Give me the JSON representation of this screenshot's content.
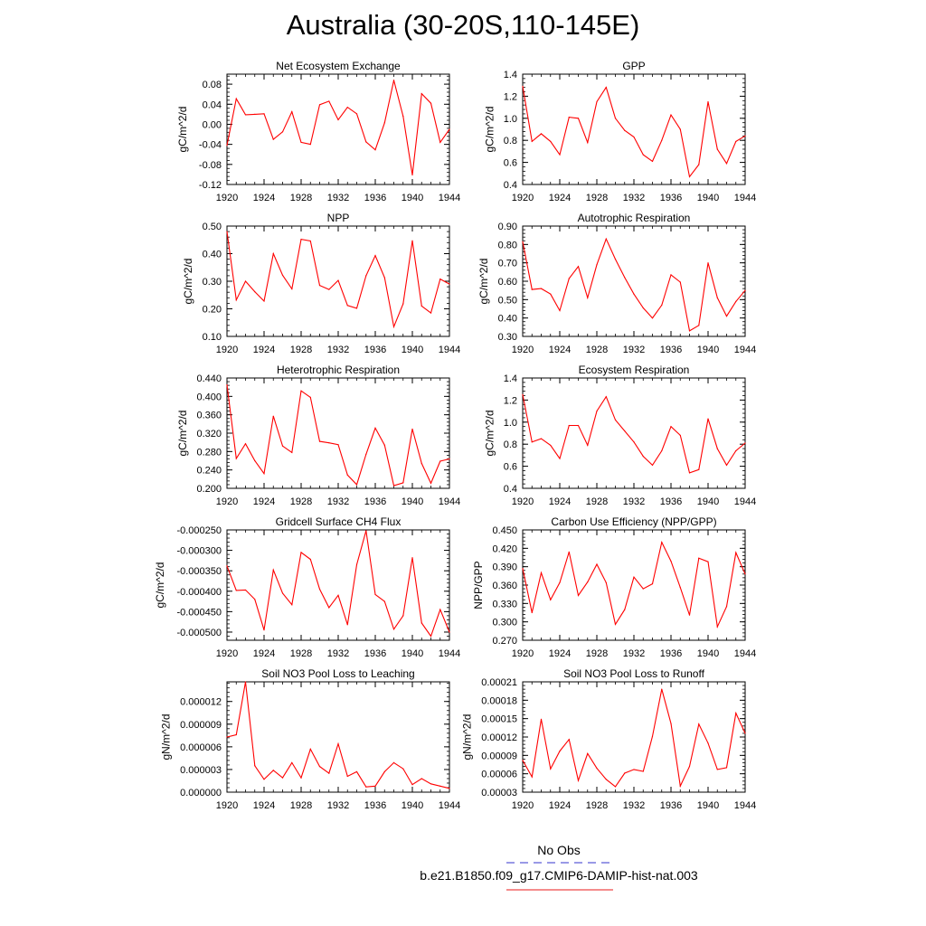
{
  "title": "Australia (30-20S,110-145E)",
  "legend": {
    "items": [
      {
        "label": "No Obs",
        "color": "#3333cc",
        "style": "dashed"
      },
      {
        "label": "b.e21.B1850.f09_g17.CMIP6-DAMIP-hist-nat.003",
        "color": "#e81a1a",
        "style": "solid"
      }
    ]
  },
  "line_color": "#ff0000",
  "chart_data": [
    {
      "type": "line",
      "title": "Net Ecosystem Exchange",
      "ylabel": "gC/m^2/d",
      "xlim": [
        1920,
        1944
      ],
      "ylim": [
        -0.12,
        0.1
      ],
      "xticks": [
        1920,
        1924,
        1928,
        1932,
        1936,
        1940,
        1944
      ],
      "yticks": [
        -0.12,
        -0.08,
        -0.04,
        0.0,
        0.04,
        0.08
      ],
      "ytick_labels": [
        "-0.12",
        "-0.08",
        "-0.04",
        "0.00",
        "0.04",
        "0.08"
      ],
      "x": [
        1920,
        1921,
        1922,
        1923,
        1924,
        1925,
        1926,
        1927,
        1928,
        1929,
        1930,
        1931,
        1932,
        1933,
        1934,
        1935,
        1936,
        1937,
        1938,
        1939,
        1940,
        1941,
        1942,
        1943,
        1944
      ],
      "series": [
        {
          "values": [
            -0.042,
            0.051,
            0.019,
            0.02,
            0.021,
            -0.03,
            -0.015,
            0.025,
            -0.036,
            -0.04,
            0.039,
            0.046,
            0.009,
            0.034,
            0.021,
            -0.035,
            -0.051,
            0.003,
            0.088,
            0.016,
            -0.101,
            0.061,
            0.042,
            -0.036,
            -0.01
          ]
        }
      ]
    },
    {
      "type": "line",
      "title": "GPP",
      "ylabel": "gC/m^2/d",
      "xlim": [
        1920,
        1944
      ],
      "ylim": [
        0.4,
        1.4
      ],
      "xticks": [
        1920,
        1924,
        1928,
        1932,
        1936,
        1940,
        1944
      ],
      "yticks": [
        0.4,
        0.6,
        0.8,
        1.0,
        1.2,
        1.4
      ],
      "ytick_labels": [
        "0.4",
        "0.6",
        "0.8",
        "1.0",
        "1.2",
        "1.4"
      ],
      "x": [
        1920,
        1921,
        1922,
        1923,
        1924,
        1925,
        1926,
        1927,
        1928,
        1929,
        1930,
        1931,
        1932,
        1933,
        1934,
        1935,
        1936,
        1937,
        1938,
        1939,
        1940,
        1941,
        1942,
        1943,
        1944
      ],
      "series": [
        {
          "values": [
            1.29,
            0.79,
            0.86,
            0.79,
            0.67,
            1.01,
            1.0,
            0.78,
            1.15,
            1.28,
            1.0,
            0.89,
            0.83,
            0.67,
            0.61,
            0.8,
            1.03,
            0.9,
            0.47,
            0.58,
            1.15,
            0.72,
            0.59,
            0.79,
            0.84
          ]
        }
      ]
    },
    {
      "type": "line",
      "title": "NPP",
      "ylabel": "gC/m^2/d",
      "xlim": [
        1920,
        1944
      ],
      "ylim": [
        0.1,
        0.5
      ],
      "xticks": [
        1920,
        1924,
        1928,
        1932,
        1936,
        1940,
        1944
      ],
      "yticks": [
        0.1,
        0.2,
        0.3,
        0.4,
        0.5
      ],
      "ytick_labels": [
        "0.10",
        "0.20",
        "0.30",
        "0.40",
        "0.50"
      ],
      "x": [
        1920,
        1921,
        1922,
        1923,
        1924,
        1925,
        1926,
        1927,
        1928,
        1929,
        1930,
        1931,
        1932,
        1933,
        1934,
        1935,
        1936,
        1937,
        1938,
        1939,
        1940,
        1941,
        1942,
        1943,
        1944
      ],
      "series": [
        {
          "values": [
            0.48,
            0.232,
            0.3,
            0.262,
            0.228,
            0.4,
            0.322,
            0.272,
            0.452,
            0.446,
            0.285,
            0.27,
            0.303,
            0.212,
            0.202,
            0.32,
            0.393,
            0.313,
            0.135,
            0.218,
            0.447,
            0.21,
            0.185,
            0.308,
            0.29
          ]
        }
      ]
    },
    {
      "type": "line",
      "title": "Autotrophic Respiration",
      "ylabel": "gC/m^2/d",
      "xlim": [
        1920,
        1944
      ],
      "ylim": [
        0.3,
        0.9
      ],
      "xticks": [
        1920,
        1924,
        1928,
        1932,
        1936,
        1940,
        1944
      ],
      "yticks": [
        0.3,
        0.4,
        0.5,
        0.6,
        0.7,
        0.8,
        0.9
      ],
      "ytick_labels": [
        "0.30",
        "0.40",
        "0.50",
        "0.60",
        "0.70",
        "0.80",
        "0.90"
      ],
      "x": [
        1920,
        1921,
        1922,
        1923,
        1924,
        1925,
        1926,
        1927,
        1928,
        1929,
        1930,
        1931,
        1932,
        1933,
        1934,
        1935,
        1936,
        1937,
        1938,
        1939,
        1940,
        1941,
        1942,
        1943,
        1944
      ],
      "series": [
        {
          "values": [
            0.815,
            0.555,
            0.56,
            0.53,
            0.44,
            0.615,
            0.68,
            0.51,
            0.69,
            0.83,
            0.72,
            0.62,
            0.53,
            0.455,
            0.4,
            0.47,
            0.635,
            0.595,
            0.33,
            0.36,
            0.7,
            0.51,
            0.41,
            0.49,
            0.55
          ]
        }
      ]
    },
    {
      "type": "line",
      "title": "Heterotrophic Respiration",
      "ylabel": "gC/m^2/d",
      "xlim": [
        1920,
        1944
      ],
      "ylim": [
        0.2,
        0.44
      ],
      "xticks": [
        1920,
        1924,
        1928,
        1932,
        1936,
        1940,
        1944
      ],
      "yticks": [
        0.2,
        0.24,
        0.28,
        0.32,
        0.36,
        0.4,
        0.44
      ],
      "ytick_labels": [
        "0.200",
        "0.240",
        "0.280",
        "0.320",
        "0.360",
        "0.400",
        "0.440"
      ],
      "x": [
        1920,
        1921,
        1922,
        1923,
        1924,
        1925,
        1926,
        1927,
        1928,
        1929,
        1930,
        1931,
        1932,
        1933,
        1934,
        1935,
        1936,
        1937,
        1938,
        1939,
        1940,
        1941,
        1942,
        1943,
        1944
      ],
      "series": [
        {
          "values": [
            0.425,
            0.265,
            0.297,
            0.26,
            0.232,
            0.357,
            0.292,
            0.278,
            0.412,
            0.398,
            0.302,
            0.299,
            0.295,
            0.229,
            0.208,
            0.274,
            0.331,
            0.294,
            0.206,
            0.212,
            0.329,
            0.254,
            0.211,
            0.259,
            0.264
          ]
        }
      ]
    },
    {
      "type": "line",
      "title": "Ecosystem Respiration",
      "ylabel": "gC/m^2/d",
      "xlim": [
        1920,
        1944
      ],
      "ylim": [
        0.4,
        1.4
      ],
      "xticks": [
        1920,
        1924,
        1928,
        1932,
        1936,
        1940,
        1944
      ],
      "yticks": [
        0.4,
        0.6,
        0.8,
        1.0,
        1.2,
        1.4
      ],
      "ytick_labels": [
        "0.4",
        "0.6",
        "0.8",
        "1.0",
        "1.2",
        "1.4"
      ],
      "x": [
        1920,
        1921,
        1922,
        1923,
        1924,
        1925,
        1926,
        1927,
        1928,
        1929,
        1930,
        1931,
        1932,
        1933,
        1934,
        1935,
        1936,
        1937,
        1938,
        1939,
        1940,
        1941,
        1942,
        1943,
        1944
      ],
      "series": [
        {
          "values": [
            1.25,
            0.82,
            0.85,
            0.79,
            0.67,
            0.97,
            0.97,
            0.79,
            1.1,
            1.23,
            1.02,
            0.92,
            0.82,
            0.69,
            0.61,
            0.74,
            0.96,
            0.88,
            0.54,
            0.57,
            1.03,
            0.76,
            0.61,
            0.74,
            0.81
          ]
        }
      ]
    },
    {
      "type": "line",
      "title": "Gridcell Surface CH4 Flux",
      "ylabel": "gC/m^2/d",
      "xlim": [
        1920,
        1944
      ],
      "ylim": [
        -0.00052,
        -0.00025
      ],
      "xticks": [
        1920,
        1924,
        1928,
        1932,
        1936,
        1940,
        1944
      ],
      "yticks": [
        -0.0005,
        -0.00045,
        -0.0004,
        -0.00035,
        -0.0003,
        -0.00025
      ],
      "ytick_labels": [
        "-0.000500",
        "-0.000450",
        "-0.000400",
        "-0.000350",
        "-0.000300",
        "-0.000250"
      ],
      "x": [
        1920,
        1921,
        1922,
        1923,
        1924,
        1925,
        1926,
        1927,
        1928,
        1929,
        1930,
        1931,
        1932,
        1933,
        1934,
        1935,
        1936,
        1937,
        1938,
        1939,
        1940,
        1941,
        1942,
        1943,
        1944
      ],
      "series": [
        {
          "values": [
            -0.000338,
            -0.000398,
            -0.000397,
            -0.00042,
            -0.000495,
            -0.000348,
            -0.000405,
            -0.000433,
            -0.000305,
            -0.000322,
            -0.000395,
            -0.00044,
            -0.00041,
            -0.000482,
            -0.000335,
            -0.000252,
            -0.000408,
            -0.000425,
            -0.000493,
            -0.00046,
            -0.000318,
            -0.000478,
            -0.00051,
            -0.000445,
            -0.0005
          ]
        }
      ]
    },
    {
      "type": "line",
      "title": "Carbon Use Efficiency (NPP/GPP)",
      "ylabel": "NPP/GPP",
      "xlim": [
        1920,
        1944
      ],
      "ylim": [
        0.27,
        0.45
      ],
      "xticks": [
        1920,
        1924,
        1928,
        1932,
        1936,
        1940,
        1944
      ],
      "yticks": [
        0.27,
        0.3,
        0.33,
        0.36,
        0.39,
        0.42,
        0.45
      ],
      "ytick_labels": [
        "0.270",
        "0.300",
        "0.330",
        "0.360",
        "0.390",
        "0.420",
        "0.450"
      ],
      "x": [
        1920,
        1921,
        1922,
        1923,
        1924,
        1925,
        1926,
        1927,
        1928,
        1929,
        1930,
        1931,
        1932,
        1933,
        1934,
        1935,
        1936,
        1937,
        1938,
        1939,
        1940,
        1941,
        1942,
        1943,
        1944
      ],
      "series": [
        {
          "values": [
            0.387,
            0.315,
            0.38,
            0.336,
            0.364,
            0.414,
            0.343,
            0.365,
            0.394,
            0.364,
            0.296,
            0.32,
            0.373,
            0.354,
            0.362,
            0.43,
            0.399,
            0.356,
            0.311,
            0.404,
            0.398,
            0.292,
            0.325,
            0.413,
            0.378
          ]
        }
      ]
    },
    {
      "type": "line",
      "title": "Soil NO3 Pool Loss to Leaching",
      "ylabel": "gN/m^2/d",
      "xlim": [
        1920,
        1944
      ],
      "ylim": [
        0.0,
        1.46e-05
      ],
      "xticks": [
        1920,
        1924,
        1928,
        1932,
        1936,
        1940,
        1944
      ],
      "yticks": [
        0.0,
        3e-06,
        6e-06,
        9e-06,
        1.2e-05
      ],
      "ytick_labels": [
        "0.000000",
        "0.000003",
        "0.000006",
        "0.000009",
        "0.000012"
      ],
      "x": [
        1920,
        1921,
        1922,
        1923,
        1924,
        1925,
        1926,
        1927,
        1928,
        1929,
        1930,
        1931,
        1932,
        1933,
        1934,
        1935,
        1936,
        1937,
        1938,
        1939,
        1940,
        1941,
        1942,
        1943,
        1944
      ],
      "series": [
        {
          "values": [
            7.3e-06,
            7.6e-06,
            1.46e-05,
            3.5e-06,
            1.7e-06,
            2.9e-06,
            1.9e-06,
            3.9e-06,
            1.9e-06,
            5.7e-06,
            3.4e-06,
            2.5e-06,
            6.4e-06,
            2.1e-06,
            2.7e-06,
            7e-07,
            8e-07,
            2.7e-06,
            3.9e-06,
            3.1e-06,
            1e-06,
            1.8e-06,
            1.1e-06,
            8e-07,
            5e-07
          ]
        }
      ]
    },
    {
      "type": "line",
      "title": "Soil NO3 Pool Loss to Runoff",
      "ylabel": "gN/m^2/d",
      "xlim": [
        1920,
        1944
      ],
      "ylim": [
        3e-05,
        0.00021
      ],
      "xticks": [
        1920,
        1924,
        1928,
        1932,
        1936,
        1940,
        1944
      ],
      "yticks": [
        3e-05,
        6e-05,
        9e-05,
        0.00012,
        0.00015,
        0.00018,
        0.00021
      ],
      "ytick_labels": [
        "0.00003",
        "0.00006",
        "0.00009",
        "0.00012",
        "0.00015",
        "0.00018",
        "0.00021"
      ],
      "x": [
        1920,
        1921,
        1922,
        1923,
        1924,
        1925,
        1926,
        1927,
        1928,
        1929,
        1930,
        1931,
        1932,
        1933,
        1934,
        1935,
        1936,
        1937,
        1938,
        1939,
        1940,
        1941,
        1942,
        1943,
        1944
      ],
      "series": [
        {
          "values": [
            8.2e-05,
            5.5e-05,
            0.000149,
            6.8e-05,
            9.7e-05,
            0.000116,
            4.9e-05,
            9.3e-05,
            6.9e-05,
            5.1e-05,
            3.9e-05,
            6.1e-05,
            6.7e-05,
            6.4e-05,
            0.000121,
            0.000198,
            0.000142,
            4e-05,
            7.2e-05,
            0.000141,
            0.00011,
            6.7e-05,
            7e-05,
            0.000159,
            0.000126
          ]
        }
      ]
    }
  ]
}
